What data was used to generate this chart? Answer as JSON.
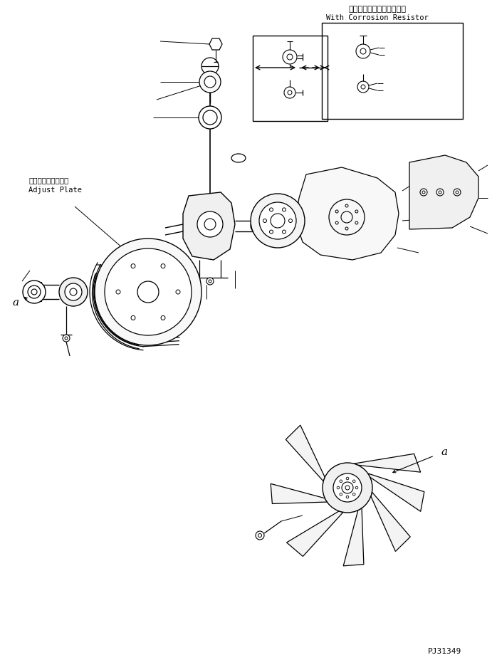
{
  "bg_color": "#ffffff",
  "line_color": "#000000",
  "part_code": "PJ31349",
  "label_adjust_plate_ja": "アジャストプレート",
  "label_adjust_plate_en": "Adjust Plate",
  "label_corrosion_ja": "コロージョンレジスタ付き",
  "label_corrosion_en": "With Corrosion Resistor",
  "label_a1": "a",
  "label_a2": "a",
  "figsize": [
    6.91,
    9.34
  ],
  "dpi": 100
}
